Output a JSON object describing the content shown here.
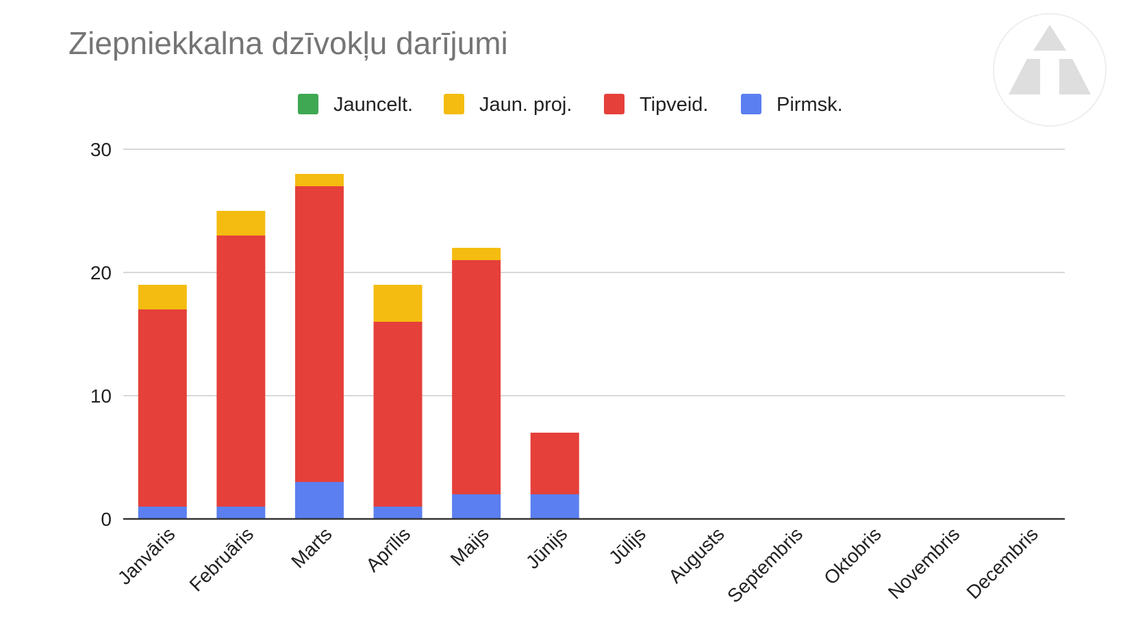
{
  "chart_data": {
    "type": "bar",
    "stacked": true,
    "title": "Ziepniekkalna dzīvokļu darījumi",
    "xlabel": "",
    "ylabel": "",
    "ylim": [
      0,
      30
    ],
    "yticks": [
      0,
      10,
      20,
      30
    ],
    "grid": true,
    "legend_position": "top",
    "categories": [
      "Janvāris",
      "Februāris",
      "Marts",
      "Aprīlis",
      "Maijs",
      "Jūnijs",
      "Jūlijs",
      "Augusts",
      "Septembris",
      "Oktobris",
      "Novembris",
      "Decembris"
    ],
    "series": [
      {
        "name": "Pirmsk.",
        "color": "#5b7ff0",
        "values": [
          1,
          1,
          3,
          1,
          2,
          2,
          0,
          0,
          0,
          0,
          0,
          0
        ]
      },
      {
        "name": "Tipveid.",
        "color": "#e5403a",
        "values": [
          16,
          22,
          24,
          15,
          19,
          5,
          0,
          0,
          0,
          0,
          0,
          0
        ]
      },
      {
        "name": "Jaun. proj.",
        "color": "#f4bc10",
        "values": [
          2,
          2,
          1,
          3,
          1,
          0,
          0,
          0,
          0,
          0,
          0,
          0
        ]
      },
      {
        "name": "Jauncelt.",
        "color": "#3ea853",
        "values": [
          0,
          0,
          0,
          0,
          0,
          0,
          0,
          0,
          0,
          0,
          0,
          0
        ]
      }
    ],
    "legend_order": [
      "Jauncelt.",
      "Jaun. proj.",
      "Tipveid.",
      "Pirmsk."
    ]
  },
  "logo": {
    "icon": "triangle-logo-icon",
    "color": "#dddddd"
  }
}
